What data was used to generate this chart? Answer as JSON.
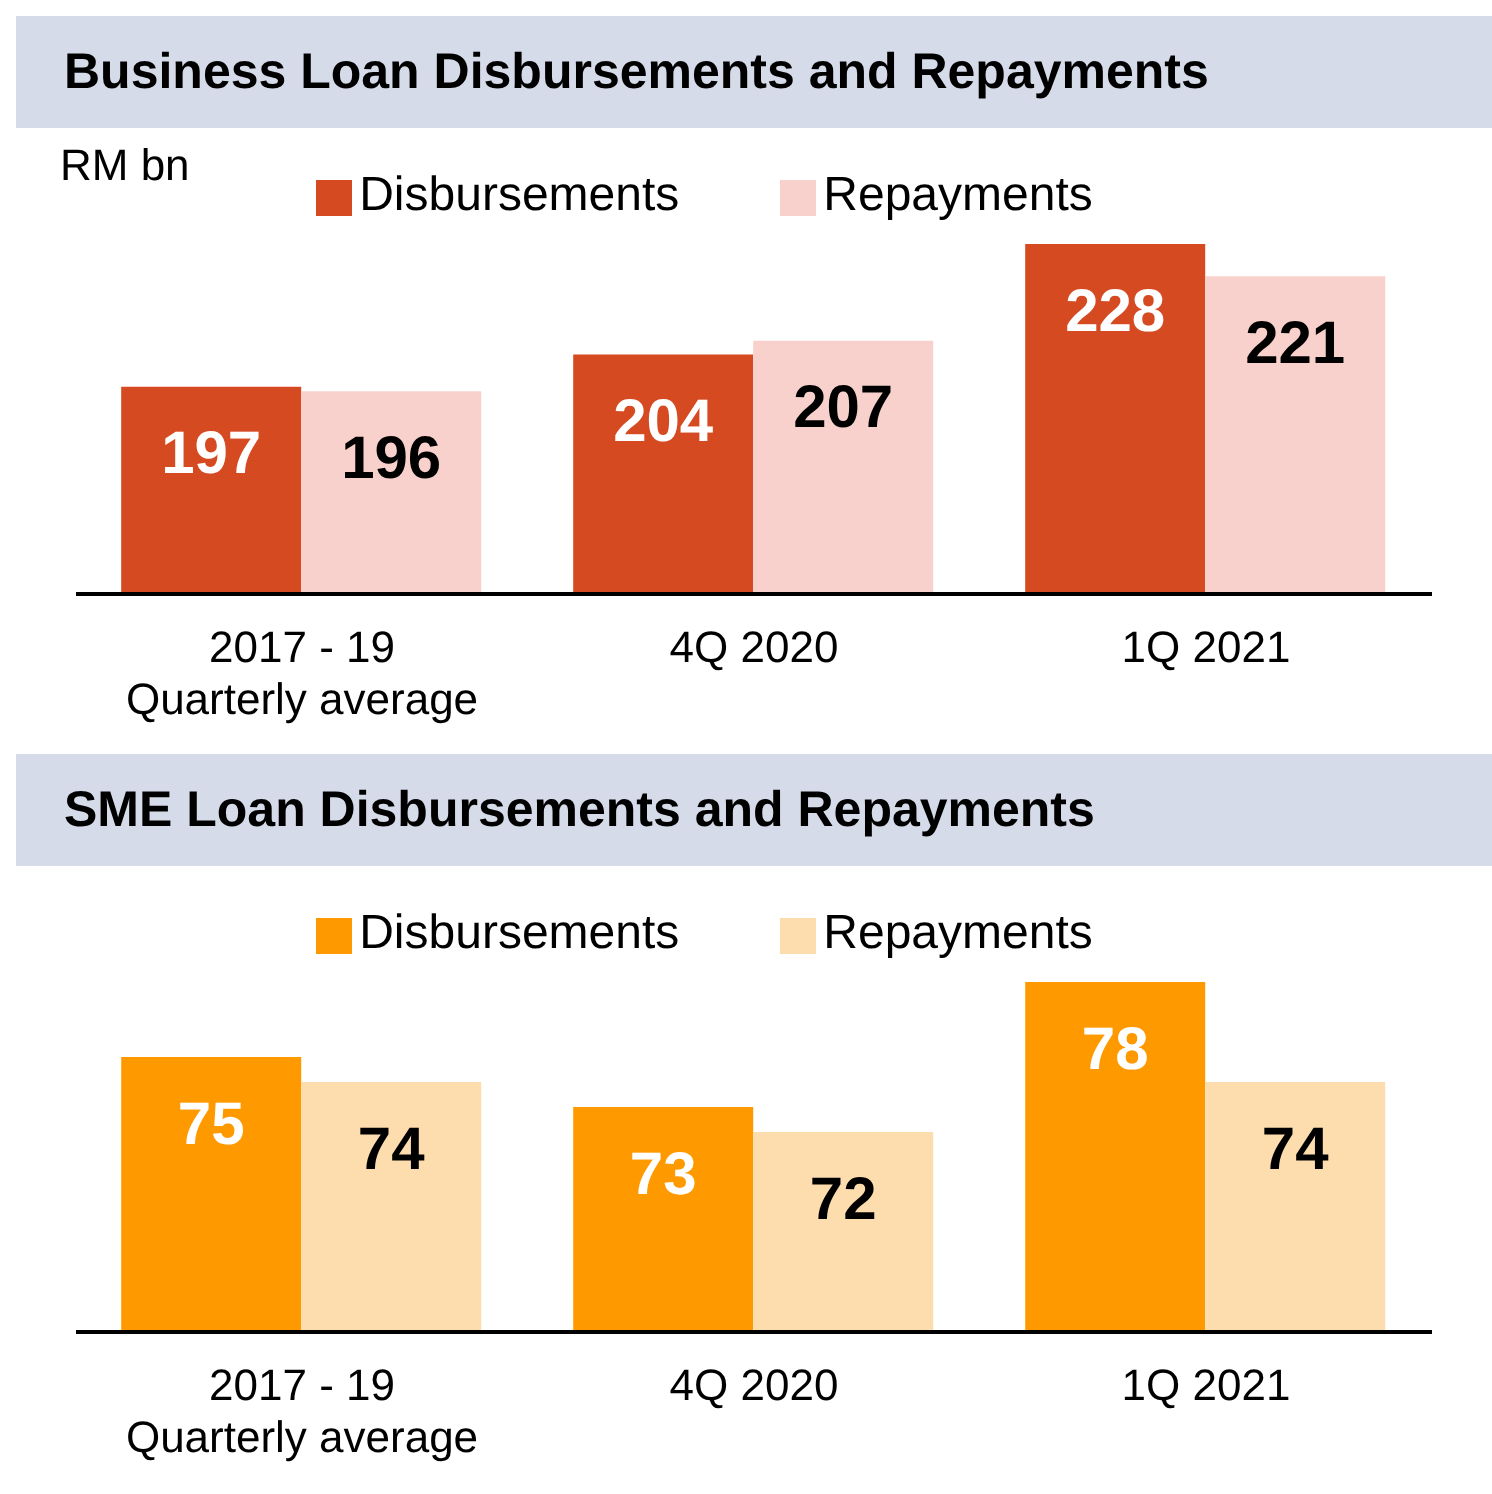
{
  "chart_data": [
    {
      "type": "bar",
      "title": "Business Loan Disbursements and Repayments",
      "annotations": [
        "RM bn"
      ],
      "categories": [
        "2017 - 19 Quarterly average",
        "4Q 2020",
        "1Q 2021"
      ],
      "series": [
        {
          "name": "Disbursements",
          "color": "#d64a21",
          "values": [
            197,
            204,
            228
          ]
        },
        {
          "name": "Repayments",
          "color": "#f8d0cc",
          "values": [
            196,
            207,
            221
          ]
        }
      ],
      "ylim": [
        152,
        228
      ],
      "tick_labels": "x",
      "legend": "top",
      "data_labels": true,
      "grid": false
    },
    {
      "type": "bar",
      "title": "SME Loan Disbursements and Repayments",
      "categories": [
        "2017 - 19 Quarterly average",
        "4Q 2020",
        "1Q 2021"
      ],
      "series": [
        {
          "name": "Disbursements",
          "color": "#ff9900",
          "values": [
            75,
            73,
            78
          ]
        },
        {
          "name": "Repayments",
          "color": "#fddcae",
          "values": [
            74,
            72,
            74
          ]
        }
      ],
      "ylim": [
        64,
        78
      ],
      "tick_labels": "x",
      "legend": "top",
      "data_labels": true,
      "grid": false
    }
  ]
}
